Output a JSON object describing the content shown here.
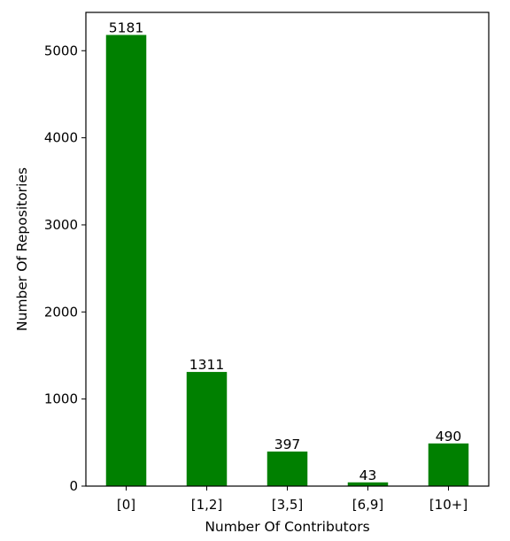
{
  "chart_data": {
    "type": "bar",
    "title": "",
    "xlabel": "Number Of Contributors",
    "ylabel": "Number Of Repositories",
    "categories": [
      "[0]",
      "[1,2]",
      "[3,5]",
      "[6,9]",
      "[10+]"
    ],
    "values": [
      5181,
      1311,
      397,
      43,
      490
    ],
    "data_labels": [
      "5181",
      "1311",
      "397",
      "43",
      "490"
    ],
    "yticks": [
      0,
      1000,
      2000,
      3000,
      4000,
      5000
    ],
    "ytick_labels": [
      "0",
      "1000",
      "2000",
      "3000",
      "4000",
      "5000"
    ],
    "ylim": [
      0,
      5440
    ],
    "grid": false,
    "bar_color": "#008000"
  }
}
